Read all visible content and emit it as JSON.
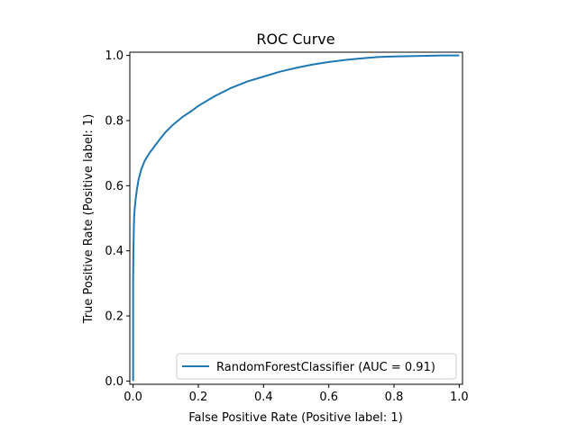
{
  "chart_data": {
    "type": "line",
    "title": "ROC Curve",
    "xlabel": "False Positive Rate (Positive label: 1)",
    "ylabel": "True Positive Rate (Positive label: 1)",
    "xlim": [
      -0.01,
      1.01
    ],
    "ylim": [
      -0.01,
      1.01
    ],
    "xticks": [
      0.0,
      0.2,
      0.4,
      0.6,
      0.8,
      1.0
    ],
    "xtick_labels": [
      "0.0",
      "0.2",
      "0.4",
      "0.6",
      "0.8",
      "1.0"
    ],
    "yticks": [
      0.0,
      0.2,
      0.4,
      0.6,
      0.8,
      1.0
    ],
    "ytick_labels": [
      "0.0",
      "0.2",
      "0.4",
      "0.6",
      "0.8",
      "1.0"
    ],
    "grid": false,
    "legend_position": "lower-right",
    "series": [
      {
        "name": "RandomForestClassifier (AUC = 0.91)",
        "color": "#1f77b4",
        "x": [
          0.0,
          0.0,
          0.001,
          0.002,
          0.003,
          0.005,
          0.008,
          0.012,
          0.017,
          0.025,
          0.035,
          0.05,
          0.065,
          0.08,
          0.1,
          0.12,
          0.15,
          0.18,
          0.2,
          0.25,
          0.3,
          0.35,
          0.4,
          0.45,
          0.5,
          0.55,
          0.6,
          0.65,
          0.7,
          0.75,
          0.8,
          0.85,
          0.9,
          0.95,
          1.0
        ],
        "y": [
          0.0,
          0.3,
          0.4,
          0.45,
          0.5,
          0.53,
          0.56,
          0.59,
          0.62,
          0.65,
          0.675,
          0.7,
          0.72,
          0.74,
          0.765,
          0.785,
          0.81,
          0.83,
          0.845,
          0.875,
          0.9,
          0.92,
          0.935,
          0.95,
          0.962,
          0.972,
          0.98,
          0.986,
          0.991,
          0.995,
          0.997,
          0.998,
          0.999,
          1.0,
          1.0
        ]
      }
    ]
  }
}
